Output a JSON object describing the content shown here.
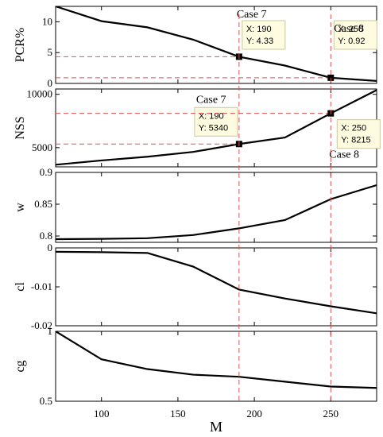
{
  "chart_data": {
    "type": "line",
    "xlabel": "M",
    "xlim": [
      70,
      280
    ],
    "xticks": [
      100,
      150,
      200,
      250
    ],
    "x": [
      70,
      100,
      130,
      160,
      190,
      220,
      250,
      280
    ],
    "colors": {
      "line": "#000000",
      "guide": "#e05050",
      "marker": "#000000",
      "tip_bg": "#fffbe0",
      "tip_border": "#c8c8a0"
    },
    "panels": [
      {
        "name": "pcr",
        "ylabel": "PCR%",
        "ylim": [
          0,
          12.5
        ],
        "yticks": [
          0,
          5,
          10
        ],
        "values": [
          12.5,
          10.1,
          9.1,
          7.1,
          4.33,
          2.9,
          0.92,
          0.4
        ],
        "markers": [
          {
            "case": "Case 7",
            "x": 190,
            "y": 4.33,
            "tip_x": "X: 190",
            "tip_y": "Y: 4.33"
          },
          {
            "case": "Case 8",
            "x": 250,
            "y": 0.92,
            "tip_x": "X: 250",
            "tip_y": "Y: 0.92"
          }
        ]
      },
      {
        "name": "nss",
        "ylabel": "NSS",
        "ylim": [
          3200,
          10500
        ],
        "yticks": [
          5000,
          10000
        ],
        "values": [
          3400,
          3800,
          4150,
          4600,
          5340,
          5950,
          8215,
          10400
        ],
        "markers": [
          {
            "case": "Case 7",
            "x": 190,
            "y": 5340,
            "tip_x": "X: 190",
            "tip_y": "Y: 5340"
          },
          {
            "case": "Case 8",
            "x": 250,
            "y": 8215,
            "tip_x": "X: 250",
            "tip_y": "Y: 8215"
          }
        ]
      },
      {
        "name": "w",
        "ylabel": "w",
        "ylim": [
          0.79,
          0.9
        ],
        "yticks": [
          0.8,
          0.85,
          0.9
        ],
        "values": [
          0.795,
          0.7955,
          0.7965,
          0.8015,
          0.812,
          0.825,
          0.858,
          0.88
        ],
        "markers": []
      },
      {
        "name": "cl",
        "ylabel": "cl",
        "ylim": [
          -0.02,
          0.0
        ],
        "yticks": [
          -0.02,
          -0.01,
          0
        ],
        "values": [
          -0.001,
          -0.0011,
          -0.0013,
          -0.0048,
          -0.0107,
          -0.013,
          -0.015,
          -0.0168
        ],
        "markers": []
      },
      {
        "name": "cg",
        "ylabel": "cg",
        "ylim": [
          0.5,
          1.0
        ],
        "yticks": [
          0.5,
          1
        ],
        "values": [
          1.0,
          0.8,
          0.73,
          0.69,
          0.675,
          0.64,
          0.605,
          0.595
        ],
        "markers": []
      }
    ]
  }
}
